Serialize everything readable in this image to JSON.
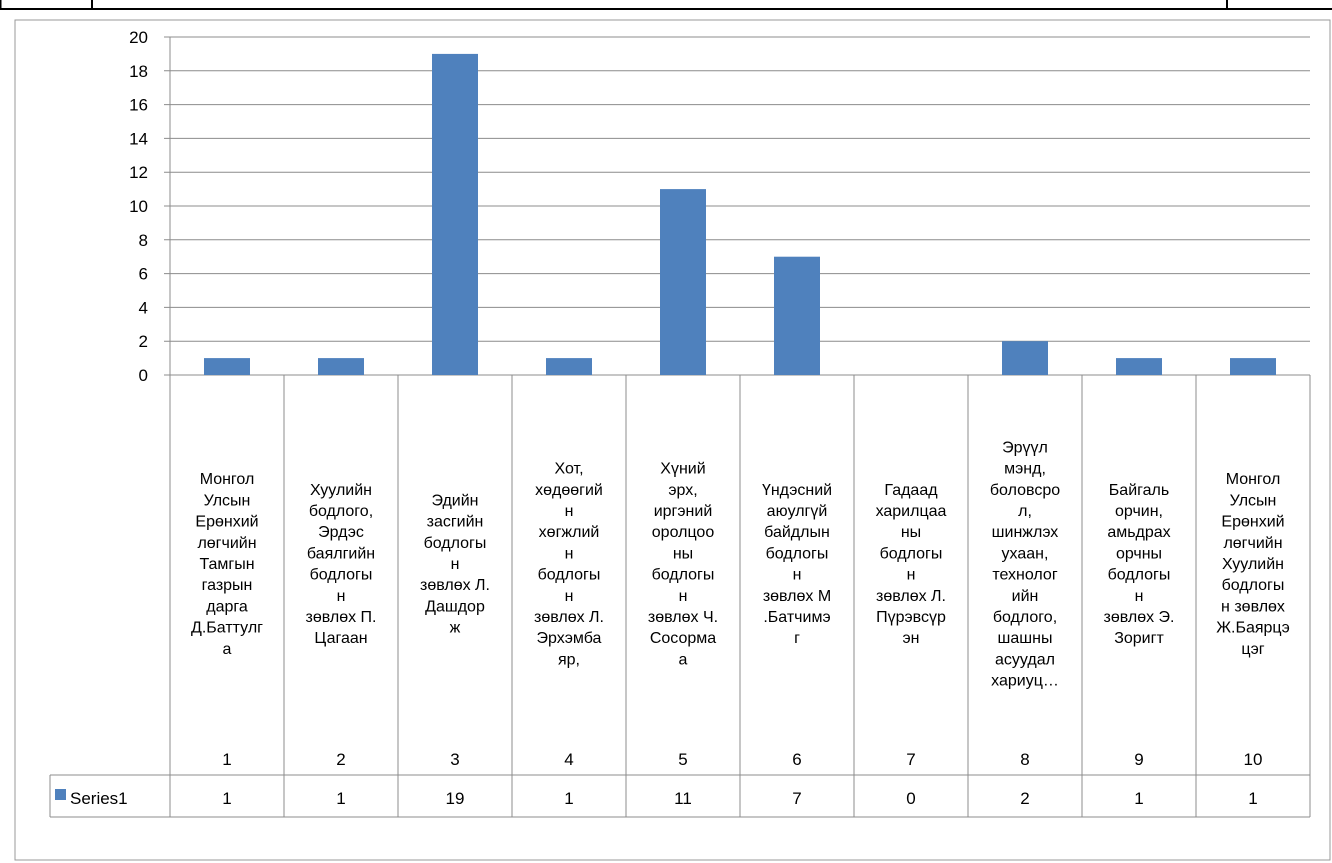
{
  "chart_data": {
    "type": "bar",
    "categories": [
      "1",
      "2",
      "3",
      "4",
      "5",
      "6",
      "7",
      "8",
      "9",
      "10"
    ],
    "category_labels": [
      [
        "Монгол",
        "Улсын",
        "Ерөнхий",
        "лөгчийн",
        "Тамгын",
        "газрын",
        "дарга",
        "Д.Баттулг",
        "а"
      ],
      [
        "Хуулийн",
        "бодлого,",
        "Эрдэс",
        "баялгийн",
        "бодлогы",
        "н",
        "зөвлөх П.",
        "Цагаан"
      ],
      [
        "Эдийн",
        "засгийн",
        "бодлогы",
        "н",
        "зөвлөх Л.",
        "Дашдор",
        "ж"
      ],
      [
        "Хот,",
        "хөдөөгий",
        "н",
        "хөгжлий",
        "н",
        "бодлогы",
        "н",
        "зөвлөх Л.",
        "Эрхэмба",
        "яр,"
      ],
      [
        "Хүний",
        "эрх,",
        "иргэний",
        "оролцоо",
        "ны",
        "бодлогы",
        "н",
        "зөвлөх Ч.",
        "Сосорма",
        "а"
      ],
      [
        "Үндэсний",
        "аюулгүй",
        "байдлын",
        "бодлогы",
        "н",
        "зөвлөх М",
        ".Батчимэ",
        "г"
      ],
      [
        "Гадаад",
        "харилцаа",
        "ны",
        "бодлогы",
        "н",
        "зөвлөх Л.",
        "Пүрэвсүр",
        "эн"
      ],
      [
        "Эрүүл",
        "мэнд,",
        "боловсро",
        "л,",
        "шинжлэх",
        "ухаан,",
        "технолог",
        "ийн",
        "бодлого,",
        "шашны",
        "асуудал",
        "хариуц…"
      ],
      [
        "Байгаль",
        "орчин,",
        "амьдрах",
        "орчны",
        "бодлогы",
        "н",
        "зөвлөх Э.",
        "Зоригт"
      ],
      [
        "Монгол",
        "Улсын",
        "Ерөнхий",
        "лөгчийн",
        "Хуулийн",
        "бодлогы",
        "н зөвлөх",
        "Ж.Баярцэ",
        "цэг"
      ]
    ],
    "series": [
      {
        "name": "Series1",
        "values": [
          1,
          1,
          19,
          1,
          11,
          7,
          0,
          2,
          1,
          1
        ]
      }
    ],
    "y_ticks": [
      "0",
      "2",
      "4",
      "6",
      "8",
      "10",
      "12",
      "14",
      "16",
      "18",
      "20"
    ],
    "ylim": [
      0,
      20
    ],
    "grid": true,
    "legend": "data-table-left",
    "data_table": true,
    "bar_color": "#4f81bd"
  }
}
